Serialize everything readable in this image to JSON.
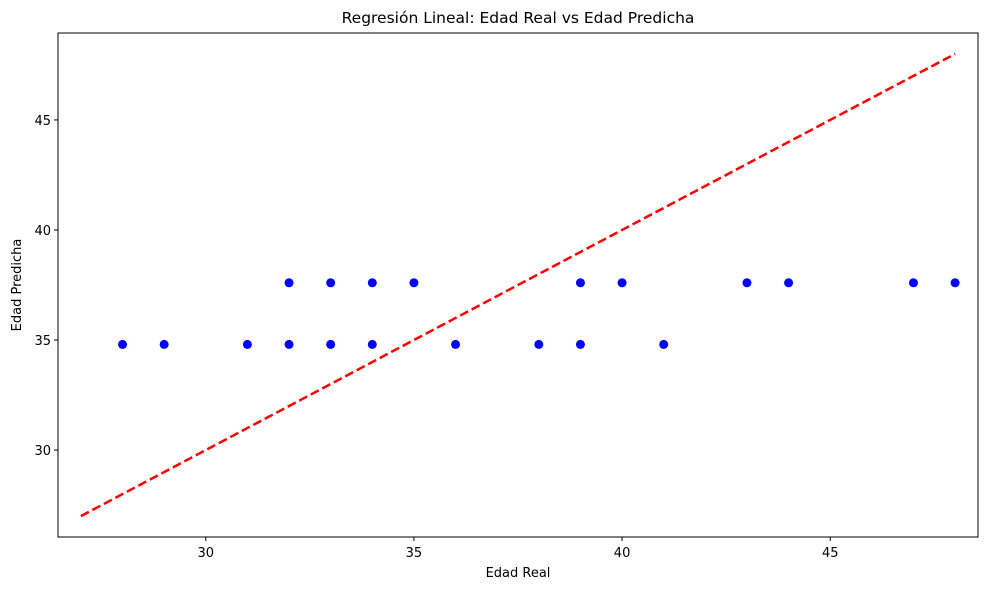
{
  "chart_data": {
    "type": "scatter",
    "title": "Regresión Lineal: Edad Real vs Edad Predicha",
    "xlabel": "Edad Real",
    "ylabel": "Edad Predicha",
    "xlim": [
      26.45,
      48.55
    ],
    "ylim": [
      26.05,
      48.95
    ],
    "xticks": [
      30,
      35,
      40,
      45
    ],
    "yticks": [
      30,
      35,
      40,
      45
    ],
    "grid": false,
    "series": [
      {
        "type": "scatter",
        "color": "#0000ff",
        "points": [
          [
            28,
            34.8
          ],
          [
            29,
            34.8
          ],
          [
            31,
            34.8
          ],
          [
            32,
            34.8
          ],
          [
            33,
            34.8
          ],
          [
            34,
            34.8
          ],
          [
            36,
            34.8
          ],
          [
            38,
            34.8
          ],
          [
            39,
            34.8
          ],
          [
            41,
            34.8
          ],
          [
            32,
            37.6
          ],
          [
            33,
            37.6
          ],
          [
            34,
            37.6
          ],
          [
            35,
            37.6
          ],
          [
            39,
            37.6
          ],
          [
            40,
            37.6
          ],
          [
            43,
            37.6
          ],
          [
            44,
            37.6
          ],
          [
            47,
            37.6
          ],
          [
            48,
            37.6
          ]
        ]
      },
      {
        "type": "line",
        "style": "dashed",
        "color": "#ff0000",
        "points": [
          [
            27,
            27
          ],
          [
            48,
            48
          ]
        ]
      }
    ]
  }
}
